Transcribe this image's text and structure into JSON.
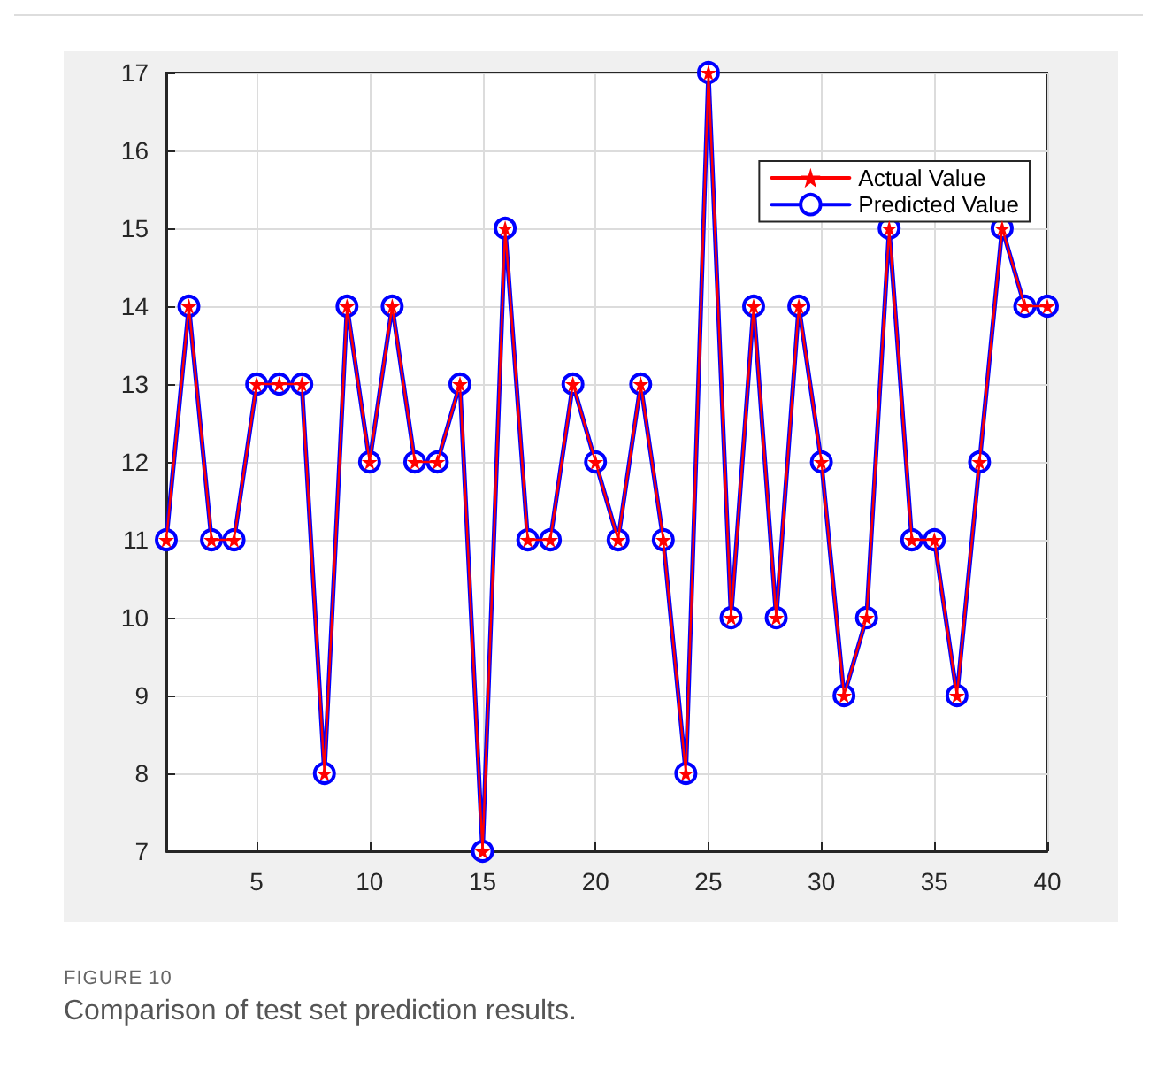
{
  "chart_data": {
    "type": "line",
    "x": [
      1,
      2,
      3,
      4,
      5,
      6,
      7,
      8,
      9,
      10,
      11,
      12,
      13,
      14,
      15,
      16,
      17,
      18,
      19,
      20,
      21,
      22,
      23,
      24,
      25,
      26,
      27,
      28,
      29,
      30,
      31,
      32,
      33,
      34,
      35,
      36,
      37,
      38,
      39,
      40
    ],
    "series": [
      {
        "name": "Actual Value",
        "color": "#ff0000",
        "marker": "star",
        "values": [
          11,
          14,
          11,
          11,
          13,
          13,
          13,
          8,
          14,
          12,
          14,
          12,
          12,
          13,
          7,
          15,
          11,
          11,
          13,
          12,
          11,
          13,
          11,
          8,
          17,
          10,
          14,
          10,
          14,
          12,
          9,
          10,
          15,
          11,
          11,
          9,
          12,
          15,
          14,
          14
        ]
      },
      {
        "name": "Predicted Value",
        "color": "#0000ff",
        "marker": "circle",
        "values": [
          11,
          14,
          11,
          11,
          13,
          13,
          13,
          8,
          14,
          12,
          14,
          12,
          12,
          13,
          7,
          15,
          11,
          11,
          13,
          12,
          11,
          13,
          11,
          8,
          17,
          10,
          14,
          10,
          14,
          12,
          9,
          10,
          15,
          11,
          11,
          9,
          12,
          15,
          14,
          14
        ]
      }
    ],
    "xlim": [
      1,
      40
    ],
    "xticks": [
      5,
      10,
      15,
      20,
      25,
      30,
      35,
      40
    ],
    "ylim": [
      7,
      17
    ],
    "yticks": [
      7,
      8,
      9,
      10,
      11,
      12,
      13,
      14,
      15,
      16,
      17
    ],
    "grid": true,
    "legend": "top right",
    "line_style": "solid",
    "annotations": [
      "FIGURE 10",
      "Comparison of test set prediction results."
    ]
  }
}
